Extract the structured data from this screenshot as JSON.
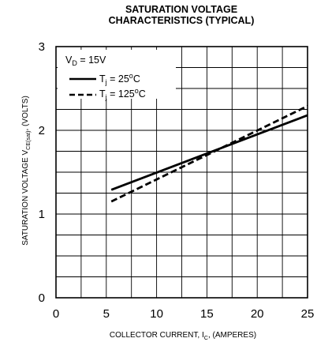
{
  "chart_data": {
    "type": "line",
    "title_line1": "SATURATION VOLTAGE",
    "title_line2": "CHARACTERISTICS (TYPICAL)",
    "xlabel": {
      "prefix": "COLLECTOR CURRENT, I",
      "sub": "C",
      "suffix": ", (AMPERES)"
    },
    "ylabel": {
      "prefix": "SATURATION VOLTAGE V",
      "sub": "CE(sat)",
      "suffix": ", (VOLTS)"
    },
    "xlim": [
      0,
      25
    ],
    "ylim": [
      0,
      3
    ],
    "x_ticks": [
      "0",
      "5",
      "10",
      "15",
      "20",
      "25"
    ],
    "y_ticks": [
      "0",
      "1",
      "2",
      "3"
    ],
    "grid": true,
    "legend": {
      "condition": {
        "prefix": "V",
        "sub": "D",
        "suffix": " = 15V"
      },
      "position": "top-left"
    },
    "series": [
      {
        "name": {
          "prefix": "T",
          "sub": "j",
          "suffix": " = 25",
          "sup": "o",
          "unit": "C"
        },
        "style": "solid",
        "x": [
          5.5,
          25
        ],
        "y": [
          1.29,
          2.18
        ]
      },
      {
        "name": {
          "prefix": "T",
          "sub": "j",
          "suffix": " = 125",
          "sup": "o",
          "unit": "C"
        },
        "style": "dashed",
        "x": [
          5.5,
          25
        ],
        "y": [
          1.15,
          2.29
        ]
      }
    ]
  }
}
